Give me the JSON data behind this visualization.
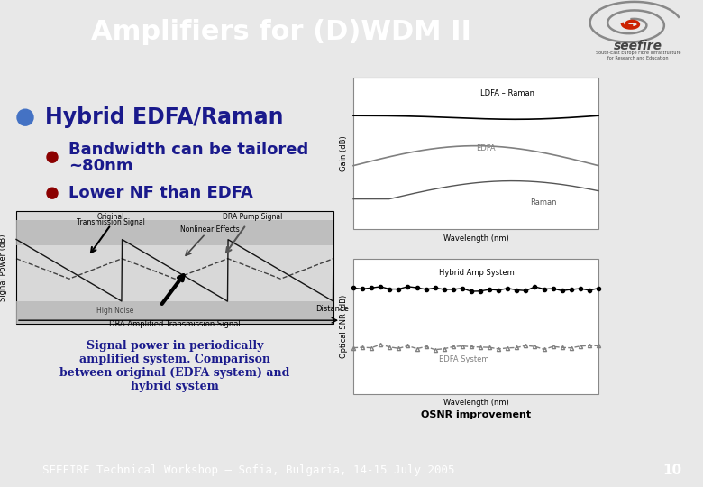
{
  "title": "Amplifiers for (D)WDM II",
  "title_bg": "#F47920",
  "title_color": "#FFFFFF",
  "title_fontsize": 22,
  "content_bg": "#E8E8E8",
  "bullet1": "Hybrid EDFA/Raman",
  "bullet1_color": "#1A1A8C",
  "bullet2a": "Bandwidth can be tailored",
  "bullet2b": "~80nm",
  "bullet2_color": "#1A1A8C",
  "bullet3": "Lower NF than EDFA",
  "bullet3_color": "#1A1A8C",
  "caption": "Signal power in periodically\namplified system. Comparison\nbetween original (EDFA system) and\nhybrid system",
  "caption_color": "#1A1A8C",
  "footer_text": "SEEFIRE Technical Workshop – Sofia, Bulgaria, 14-15 July 2005",
  "footer_bg": "#F47920",
  "footer_color": "#FFFFFF",
  "footer_page": "10",
  "bullet1_dot_color": "#4472C4",
  "bullet2_dot_color": "#8B0000",
  "bullet3_dot_color": "#8B0000",
  "osnr_label": "OSNR improvement",
  "dra_label": "DRA Amplified Transmission Signal"
}
